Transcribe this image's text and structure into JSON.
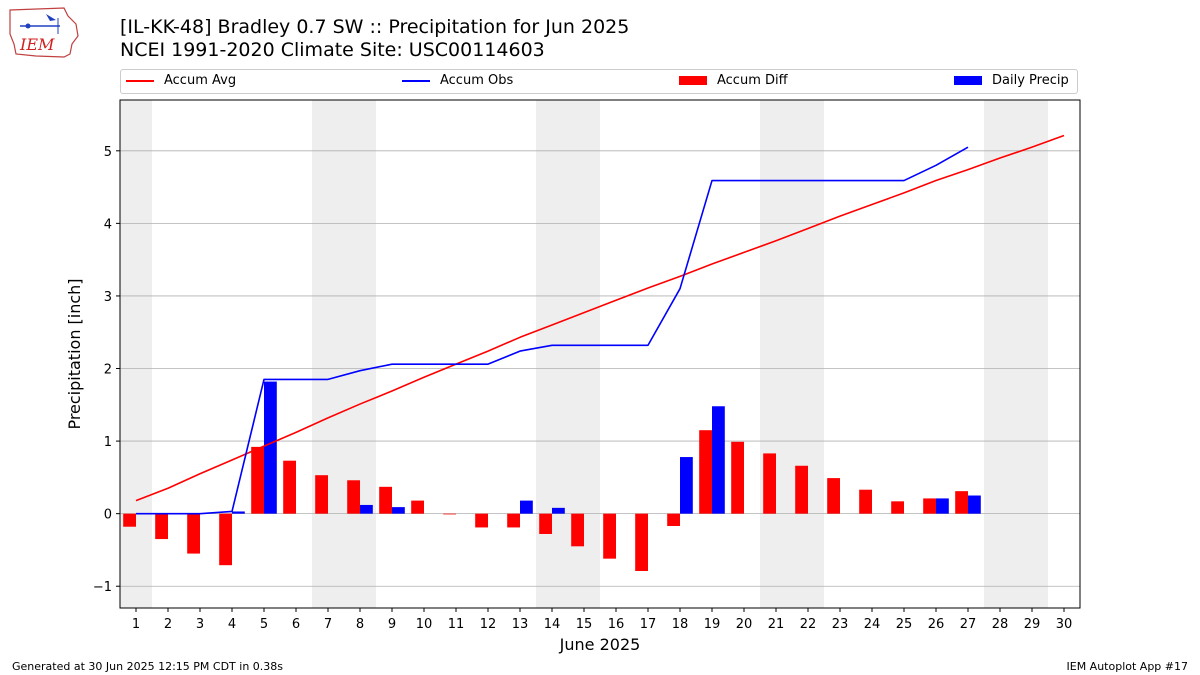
{
  "header": {
    "logo_text": "IEM",
    "title_line1": "[IL-KK-48] Bradley 0.7 SW :: Precipitation for Jun 2025",
    "title_line2": "NCEI 1991-2020 Climate Site: USC00114603"
  },
  "footer": {
    "left": "Generated at 30 Jun 2025 12:15 PM CDT in 0.38s",
    "right": "IEM Autoplot App #17"
  },
  "colors": {
    "accum_avg": "#ff0000",
    "accum_obs": "#0000ff",
    "accum_diff": "#ff0000",
    "daily_precip": "#0000ff",
    "weekend_shade": "#eeeeee",
    "grid": "#b0b0b0"
  },
  "chart_data": {
    "type": "bar",
    "xlabel": "June 2025",
    "ylabel": "Precipitation [inch]",
    "xlim": [
      0.5,
      30.5
    ],
    "ylim": [
      -1.3,
      5.7
    ],
    "yticks": [
      -1,
      0,
      1,
      2,
      3,
      4,
      5
    ],
    "ytick_labels": [
      "−1",
      "0",
      "1",
      "2",
      "3",
      "4",
      "5"
    ],
    "grid": "horizontal",
    "legend_position": "top",
    "days": [
      1,
      2,
      3,
      4,
      5,
      6,
      7,
      8,
      9,
      10,
      11,
      12,
      13,
      14,
      15,
      16,
      17,
      18,
      19,
      20,
      21,
      22,
      23,
      24,
      25,
      26,
      27,
      28,
      29,
      30
    ],
    "day_labels": [
      "1",
      "2",
      "3",
      "4",
      "5",
      "6",
      "7",
      "8",
      "9",
      "10",
      "11",
      "12",
      "13",
      "14",
      "15",
      "16",
      "17",
      "18",
      "19",
      "20",
      "21",
      "22",
      "23",
      "24",
      "25",
      "26",
      "27",
      "28",
      "29",
      "30"
    ],
    "weekend_days": [
      1,
      7,
      8,
      14,
      15,
      21,
      22,
      28,
      29
    ],
    "series": [
      {
        "name": "Accum Avg",
        "kind": "line",
        "values": [
          0.18,
          0.35,
          0.55,
          0.74,
          0.93,
          1.12,
          1.32,
          1.51,
          1.69,
          1.88,
          2.06,
          2.24,
          2.43,
          2.6,
          2.77,
          2.94,
          3.11,
          3.27,
          3.44,
          3.6,
          3.76,
          3.93,
          4.1,
          4.26,
          4.42,
          4.59,
          4.74,
          4.9,
          5.05,
          5.21
        ]
      },
      {
        "name": "Accum Obs",
        "kind": "line",
        "values": [
          0.0,
          0.0,
          0.0,
          0.03,
          1.85,
          1.85,
          1.85,
          1.97,
          2.06,
          2.06,
          2.06,
          2.06,
          2.24,
          2.32,
          2.32,
          2.32,
          2.32,
          3.1,
          4.59,
          4.59,
          4.59,
          4.59,
          4.59,
          4.59,
          4.59,
          4.8,
          5.05
        ]
      },
      {
        "name": "Accum Diff",
        "kind": "bar",
        "values": [
          -0.18,
          -0.35,
          -0.55,
          -0.71,
          0.92,
          0.73,
          0.53,
          0.46,
          0.37,
          0.18,
          -0.01,
          -0.19,
          -0.19,
          -0.28,
          -0.45,
          -0.62,
          -0.79,
          -0.17,
          1.15,
          0.99,
          0.83,
          0.66,
          0.49,
          0.33,
          0.17,
          0.21,
          0.31
        ]
      },
      {
        "name": "Daily Precip",
        "kind": "bar",
        "values": [
          0.0,
          0.0,
          0.0,
          0.03,
          1.82,
          0.0,
          0.0,
          0.12,
          0.09,
          0.0,
          0.0,
          0.0,
          0.18,
          0.08,
          0.0,
          0.0,
          0.0,
          0.78,
          1.48,
          0.0,
          0.0,
          0.0,
          0.0,
          0.0,
          0.0,
          0.21,
          0.25
        ]
      }
    ]
  }
}
